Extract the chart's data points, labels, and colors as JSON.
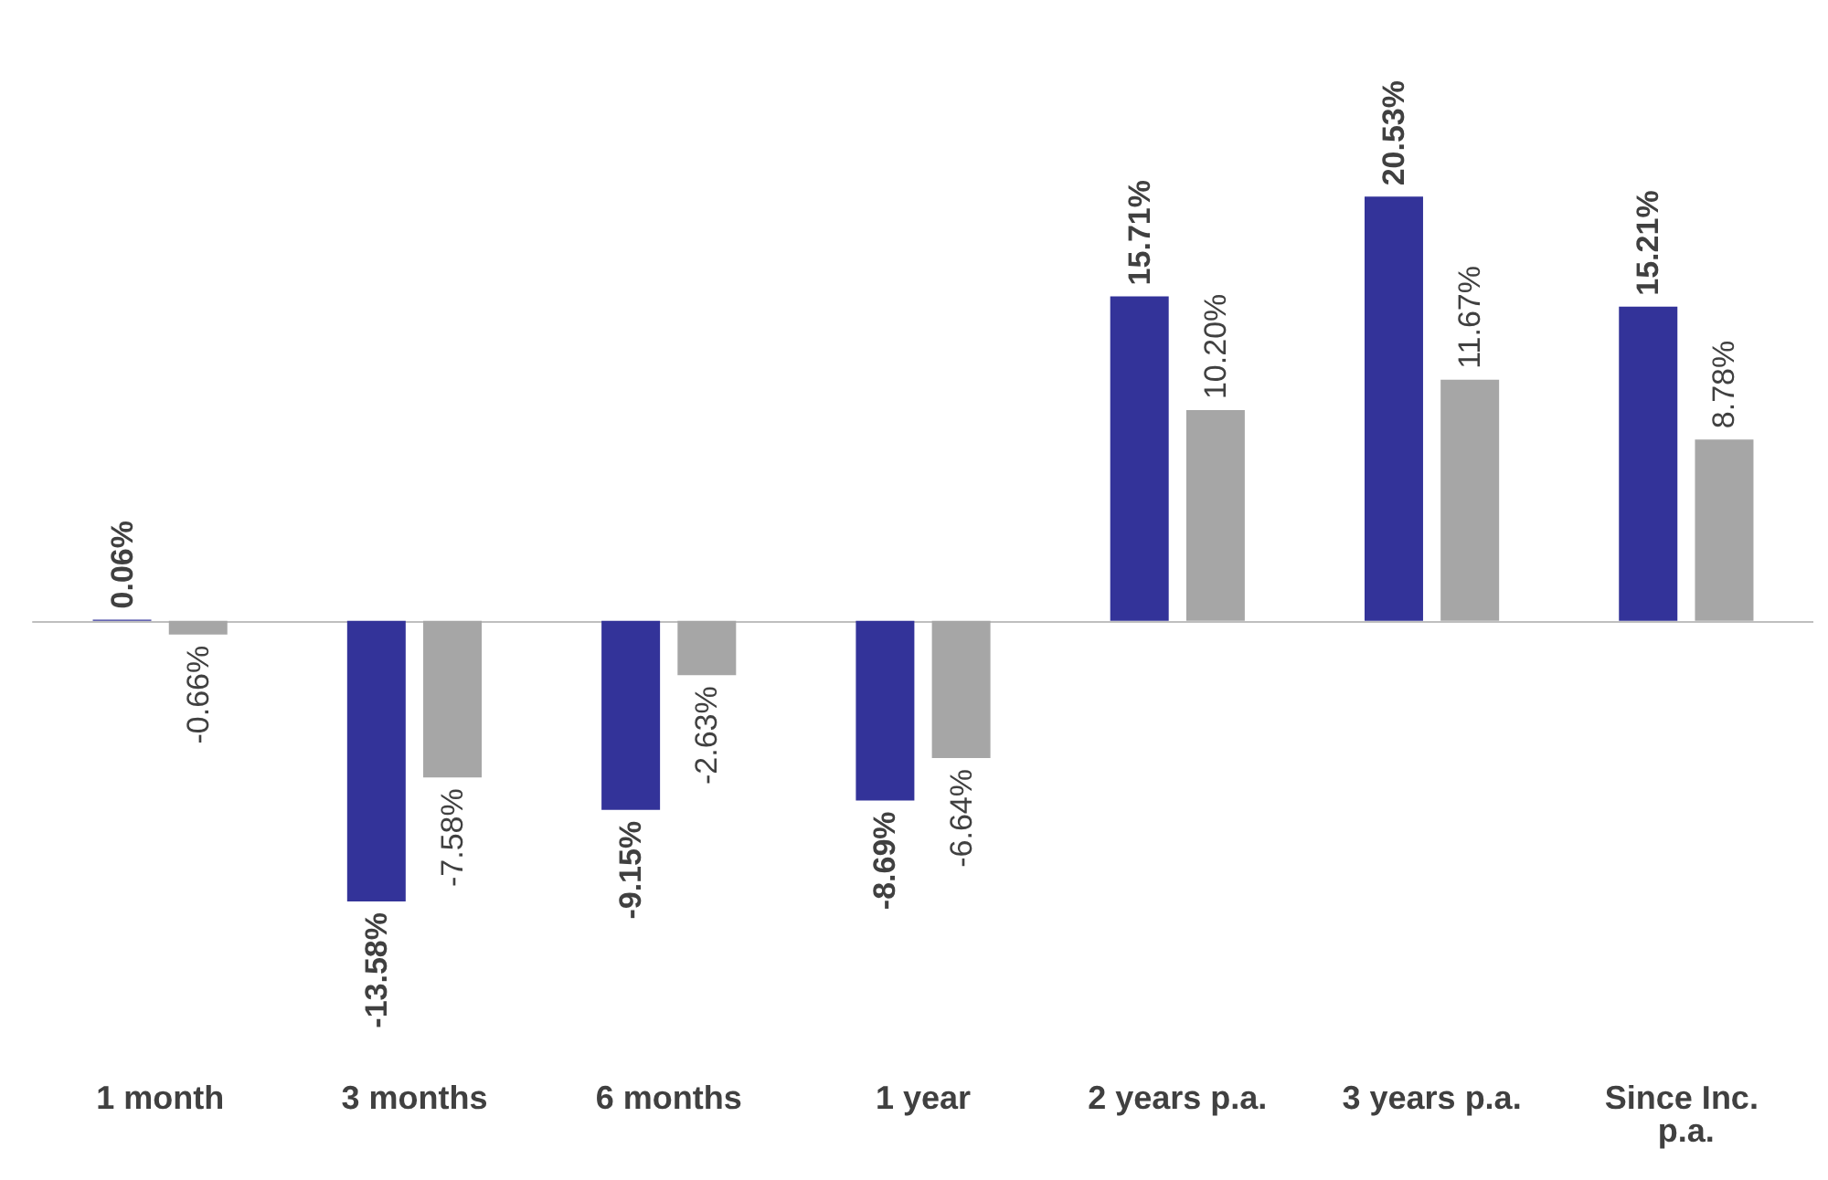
{
  "chart_data": {
    "type": "bar",
    "categories": [
      "1 month",
      "3 months",
      "6 months",
      "1 year",
      "2 years p.a.",
      "3 years p.a.",
      "Since Inc. p.a."
    ],
    "series": [
      {
        "color": "#333399",
        "values": [
          0.06,
          -13.58,
          -9.15,
          -8.69,
          15.71,
          20.53,
          15.21
        ],
        "value_labels": [
          "0.06%",
          "-13.58%",
          "-9.15%",
          "-8.69%",
          "15.71%",
          "20.53%",
          "15.21%"
        ]
      },
      {
        "color": "#a6a6a6",
        "values": [
          -0.66,
          -7.58,
          -2.63,
          -6.64,
          10.2,
          11.67,
          8.78
        ],
        "value_labels": [
          "-0.66%",
          "-7.58%",
          "-2.63%",
          "-6.64%",
          "10.20%",
          "11.67%",
          "8.78%"
        ]
      }
    ],
    "grid": false
  }
}
